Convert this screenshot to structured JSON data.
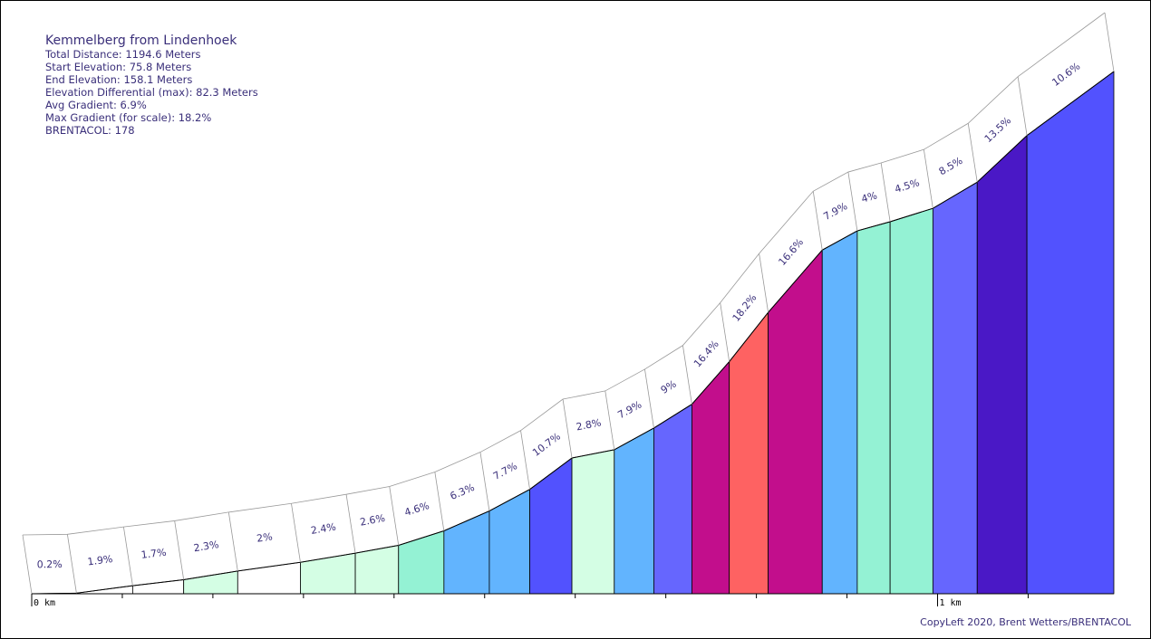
{
  "info": {
    "title": "Kemmelberg from Lindenhoek",
    "lines": [
      "Total Distance: 1194.6 Meters",
      "Start Elevation: 75.8 Meters",
      "End Elevation: 158.1 Meters",
      "Elevation Differential (max): 82.3 Meters",
      "Avg Gradient: 6.9%",
      "Max Gradient (for scale): 18.2%",
      "BRENTACOL: 178"
    ]
  },
  "copyright": "CopyLeft 2020, Brent Wetters/BRENTACOL",
  "chart_data": {
    "type": "area",
    "distance_m": 1194.6,
    "start_elevation_m": 75.8,
    "end_elevation_m": 158.1,
    "x_tick_labels": [
      "0 km",
      "1 km"
    ],
    "segments": [
      {
        "label": "0.2%",
        "gradient": 0.2,
        "color": "#ffffff"
      },
      {
        "label": "1.9%",
        "gradient": 1.9,
        "color": "#ffffff"
      },
      {
        "label": "1.7%",
        "gradient": 1.7,
        "color": "#ffffff"
      },
      {
        "label": "2.3%",
        "gradient": 2.3,
        "color": "#d4fee4"
      },
      {
        "label": "2%",
        "gradient": 2.0,
        "color": "#ffffff"
      },
      {
        "label": "2.4%",
        "gradient": 2.4,
        "color": "#d4fee4"
      },
      {
        "label": "2.6%",
        "gradient": 2.6,
        "color": "#d4fee4"
      },
      {
        "label": "4.6%",
        "gradient": 4.6,
        "color": "#94f2d4"
      },
      {
        "label": "6.3%",
        "gradient": 6.3,
        "color": "#62b4fe"
      },
      {
        "label": "7.7%",
        "gradient": 7.7,
        "color": "#62b4fe"
      },
      {
        "label": "10.7%",
        "gradient": 10.7,
        "color": "#5252fe"
      },
      {
        "label": "2.8%",
        "gradient": 2.8,
        "color": "#d4fee4"
      },
      {
        "label": "7.9%",
        "gradient": 7.9,
        "color": "#62b4fe"
      },
      {
        "label": "9%",
        "gradient": 9.0,
        "color": "#6666fe"
      },
      {
        "label": "16.4%",
        "gradient": 16.4,
        "color": "#c20e8c"
      },
      {
        "label": "18.2%",
        "gradient": 18.2,
        "color": "#fe6262"
      },
      {
        "label": "16.6%",
        "gradient": 16.6,
        "color": "#c20e8c"
      },
      {
        "label": "7.9%",
        "gradient": 7.9,
        "color": "#62b4fe"
      },
      {
        "label": "4%",
        "gradient": 4.0,
        "color": "#94f2d4"
      },
      {
        "label": "4.5%",
        "gradient": 4.5,
        "color": "#94f2d4"
      },
      {
        "label": "8.5%",
        "gradient": 8.5,
        "color": "#6666fe"
      },
      {
        "label": "13.5%",
        "gradient": 13.5,
        "color": "#4a18c6"
      },
      {
        "label": "10.6%",
        "gradient": 10.6,
        "color": "#5252fe"
      }
    ]
  }
}
